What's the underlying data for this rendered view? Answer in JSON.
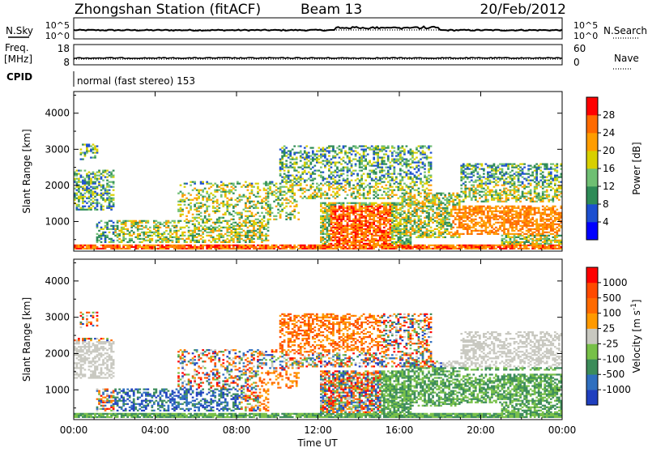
{
  "header": {
    "station": "Zhongshan Station (fitACF)",
    "beam": "Beam 13",
    "date": "20/Feb/2012"
  },
  "strips": {
    "nsky_label": "N.Sky",
    "nsky_ticks": [
      "10^5",
      "10^0"
    ],
    "nsearch_label": "N.Search",
    "nsearch_ticks": [
      "10^5",
      "10^0"
    ],
    "freq_label_1": "Freq.",
    "freq_label_2": "[MHz]",
    "freq_ticks": [
      "18",
      "8"
    ],
    "nave_label": "Nave",
    "nave_ticks": [
      "60",
      "0"
    ],
    "cpid_label": "CPID",
    "cpid_text": "normal (fast stereo) 153"
  },
  "chart_data": [
    {
      "type": "heatmap",
      "panel": "power",
      "ylabel": "Slant Range [km]",
      "xlabel": "",
      "x_ticks": [
        "00:00",
        "04:00",
        "08:00",
        "12:00",
        "16:00",
        "20:00",
        "00:00"
      ],
      "xlim_hours": [
        0,
        24
      ],
      "ylim": [
        180,
        4600
      ],
      "y_ticks": [
        1000,
        2000,
        3000,
        4000
      ],
      "colorbar": {
        "label": "Power [dB]",
        "ticks": [
          4,
          8,
          12,
          16,
          20,
          24,
          28
        ],
        "colors": [
          "#0000ff",
          "#1c4fd0",
          "#2e8b57",
          "#6fbf73",
          "#d8d000",
          "#ff9d00",
          "#ff6a00",
          "#ff0000"
        ]
      }
    },
    {
      "type": "heatmap",
      "panel": "velocity",
      "ylabel": "Slant Range [km]",
      "xlabel": "Time UT",
      "x_ticks": [
        "00:00",
        "04:00",
        "08:00",
        "12:00",
        "16:00",
        "20:00",
        "00:00"
      ],
      "xlim_hours": [
        0,
        24
      ],
      "ylim": [
        180,
        4600
      ],
      "y_ticks": [
        1000,
        2000,
        3000,
        4000
      ],
      "colorbar": {
        "label": "Velocity [m s",
        "label_sup": "-1",
        "label_end": "]",
        "ticks": [
          "1000",
          "500",
          "100",
          "25",
          "-25",
          "-100",
          "-500",
          "-1000"
        ],
        "colors": [
          "#1f3fbf",
          "#2f6fbf",
          "#3c8c5a",
          "#77c048",
          "#c8c8c0",
          "#ff9a00",
          "#ff6a00",
          "#ff4a00",
          "#ff0000"
        ]
      }
    }
  ]
}
